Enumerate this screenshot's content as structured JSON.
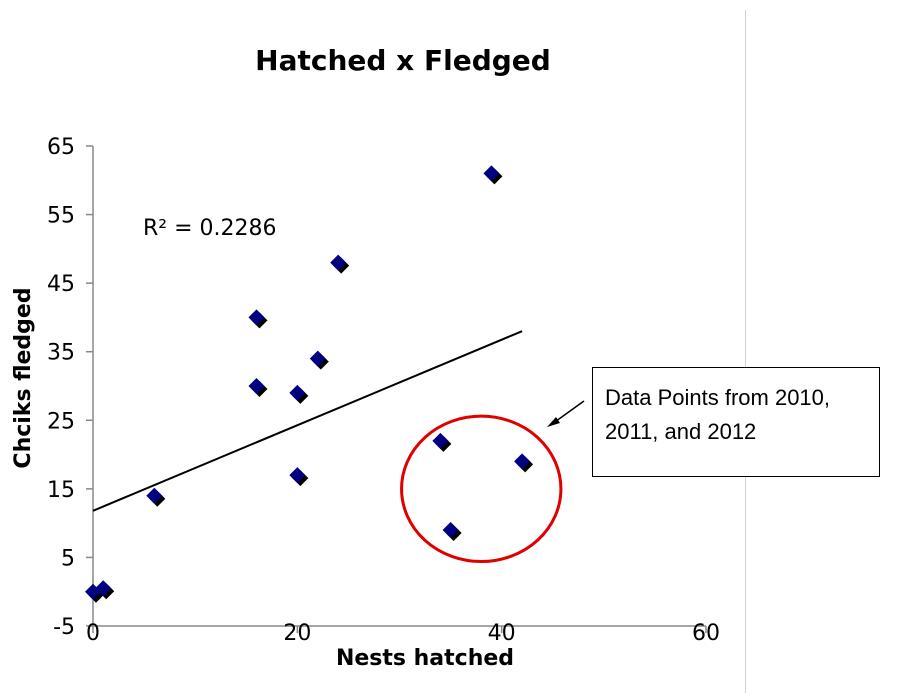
{
  "chart_data": {
    "type": "scatter",
    "title": "Hatched x Fledged",
    "xlabel": "Nests hatched",
    "ylabel": "Chciks fledged",
    "xlim": [
      0,
      60
    ],
    "ylim": [
      -5,
      65
    ],
    "x_ticks": [
      "0",
      "20",
      "40",
      "60"
    ],
    "y_ticks": [
      "65",
      "55",
      "45",
      "35",
      "25",
      "15",
      "5",
      "-5"
    ],
    "x_tick_values": [
      0,
      20,
      40,
      60
    ],
    "y_tick_values": [
      65,
      55,
      45,
      35,
      25,
      15,
      5,
      -5
    ],
    "grid": false,
    "legend": "none",
    "marker_color": "#000080",
    "series": [
      {
        "points": [
          {
            "x": 0,
            "y": 0
          },
          {
            "x": 1,
            "y": 0.5
          },
          {
            "x": 6,
            "y": 14
          },
          {
            "x": 16,
            "y": 40
          },
          {
            "x": 16,
            "y": 30
          },
          {
            "x": 20,
            "y": 29
          },
          {
            "x": 20,
            "y": 17
          },
          {
            "x": 22,
            "y": 34
          },
          {
            "x": 24,
            "y": 48
          },
          {
            "x": 34,
            "y": 22
          },
          {
            "x": 35,
            "y": 9
          },
          {
            "x": 39,
            "y": 61
          },
          {
            "x": 42,
            "y": 19
          }
        ]
      }
    ],
    "trendline": {
      "type": "linear",
      "x_start": 0,
      "y_start": 11.8,
      "x_end": 42,
      "y_end": 38,
      "color": "#000000"
    },
    "annotations": {
      "r_squared": "R² = 0.2286",
      "callout_text_line1": "Data Points from 2010,",
      "callout_text_line2": "2011, and 2012",
      "highlight_circle": {
        "cx": 38,
        "cy": 15,
        "rx": 7.8,
        "ry": 10.6,
        "color": "#e00000"
      }
    }
  }
}
